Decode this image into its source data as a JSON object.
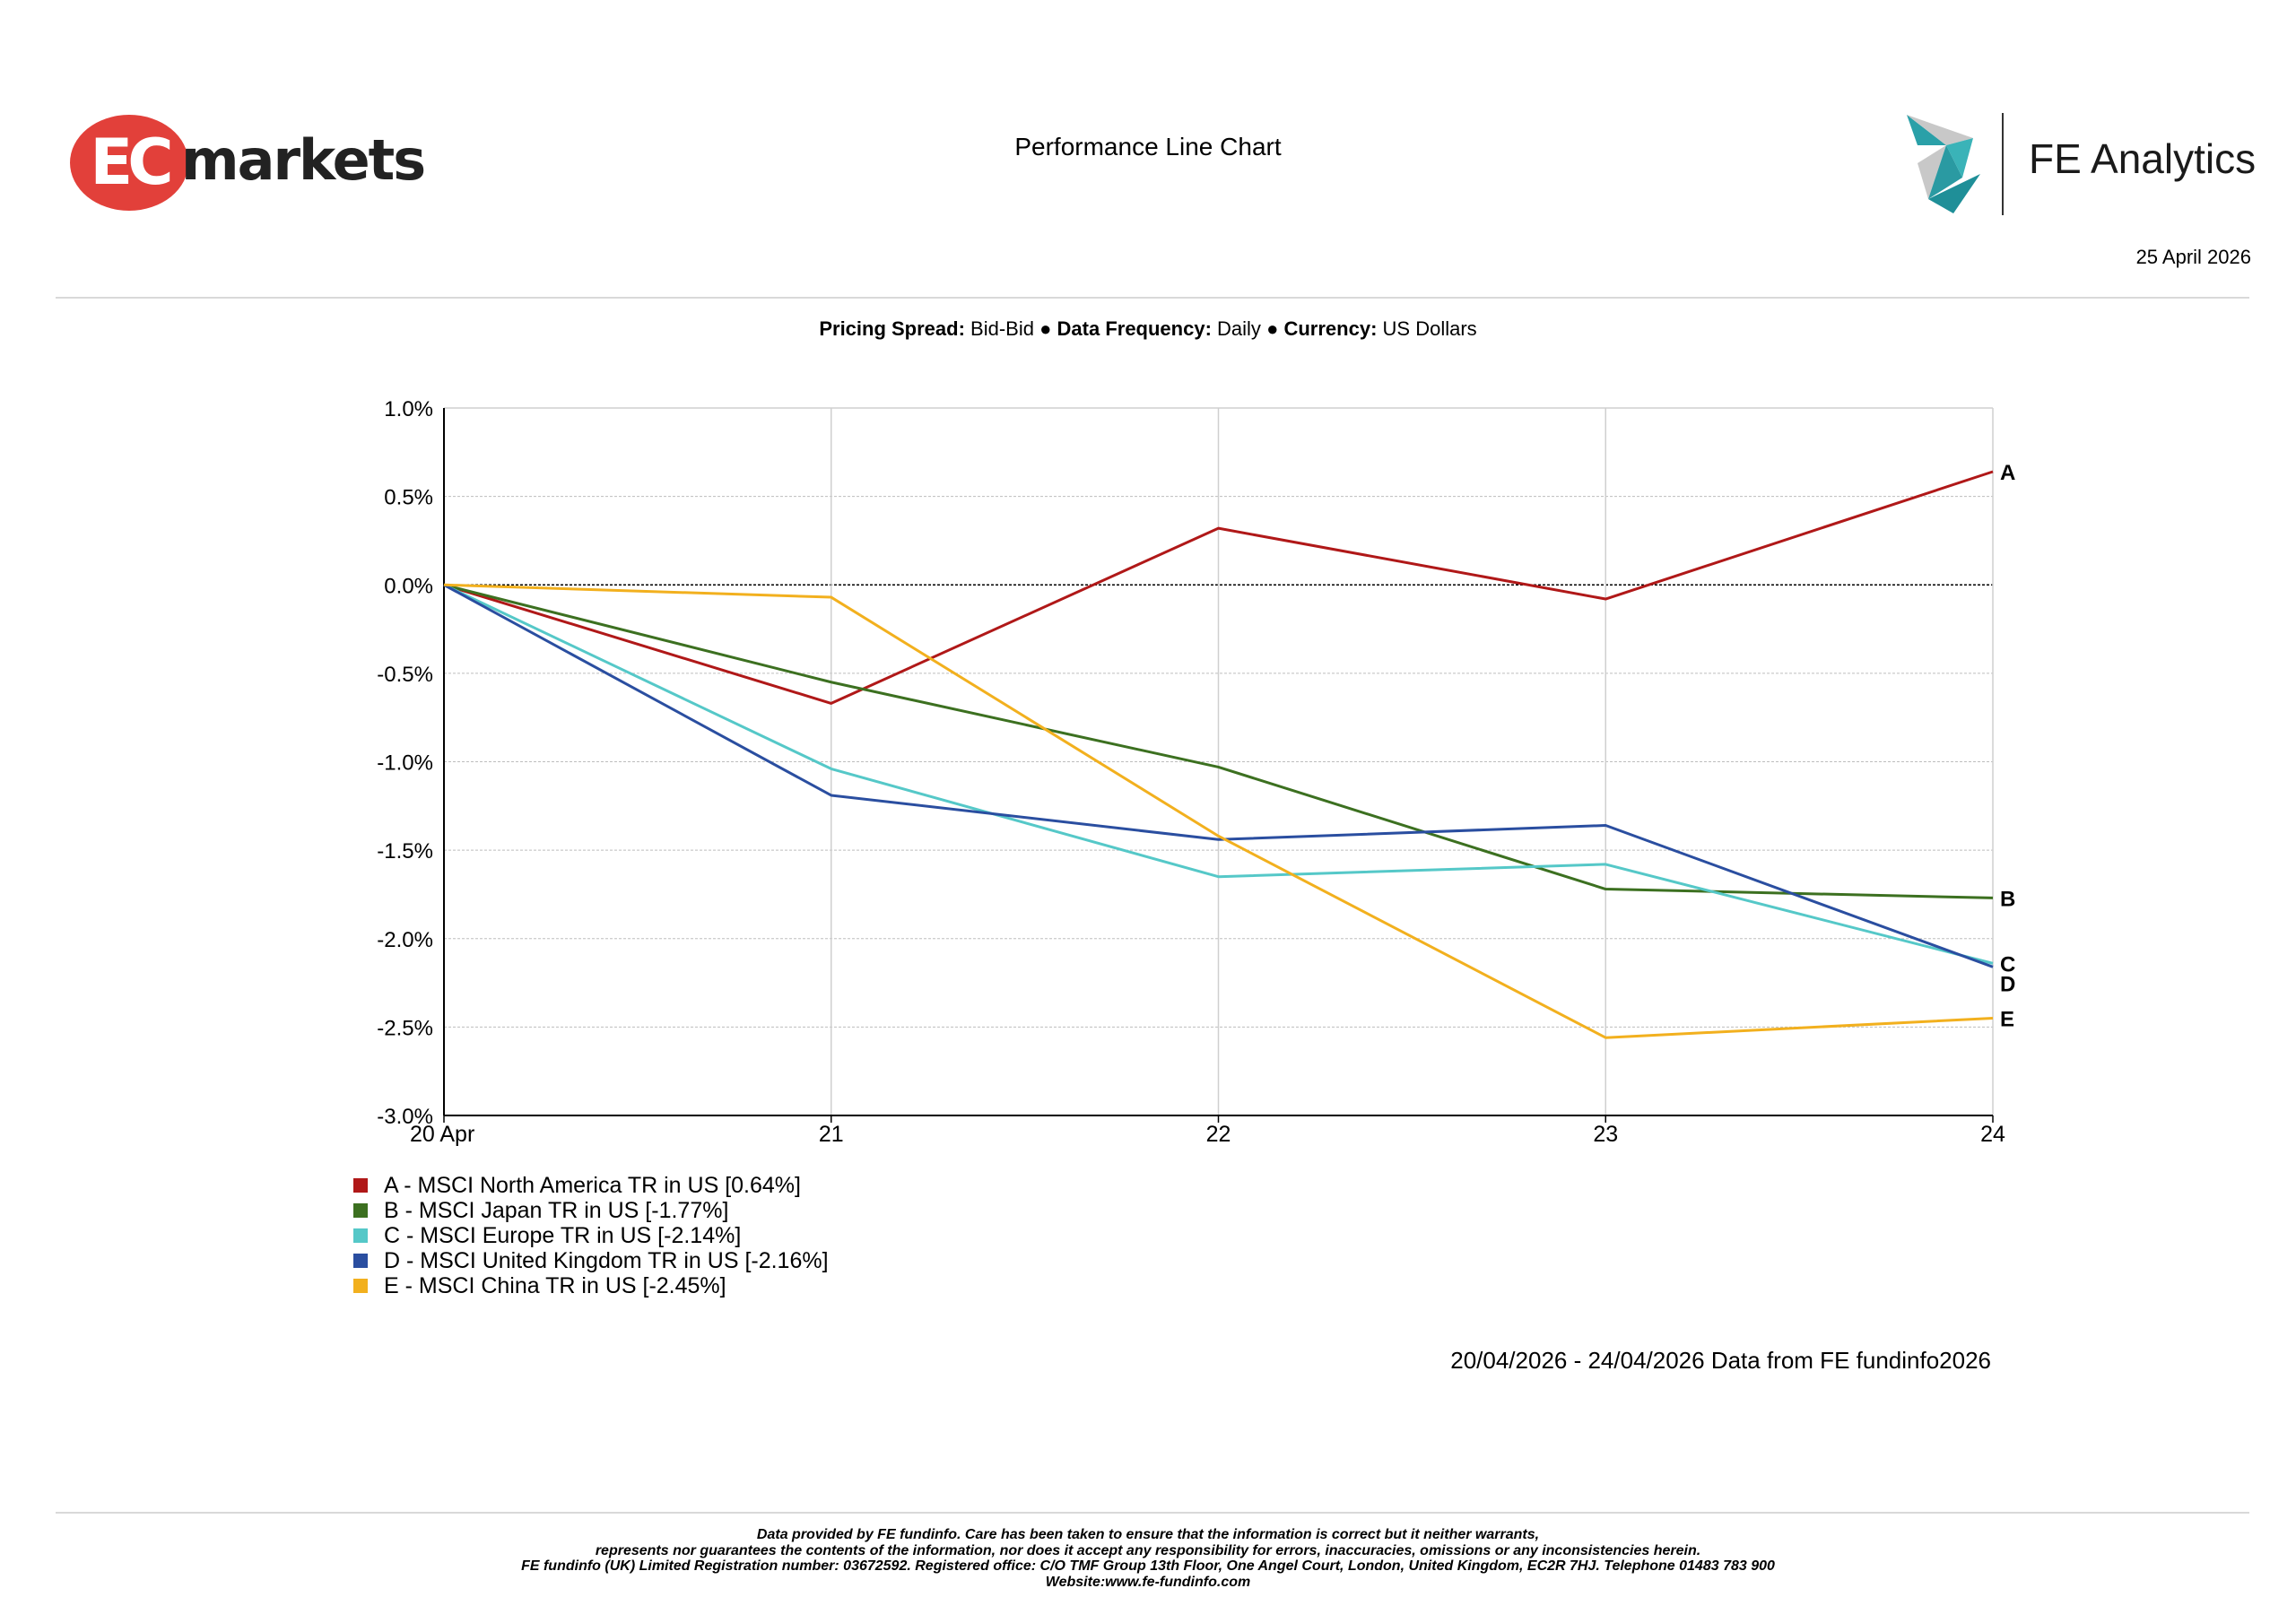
{
  "header": {
    "brand_logo": {
      "mark": "EC",
      "word": "markets"
    },
    "title": "Performance Line Chart",
    "fe_logo_text": "FE Analytics",
    "date": "25 April 2026"
  },
  "meta": {
    "pricing_spread_label": "Pricing Spread:",
    "pricing_spread_value": "Bid-Bid",
    "data_frequency_label": "Data Frequency:",
    "data_frequency_value": "Daily",
    "currency_label": "Currency:",
    "currency_value": "US Dollars",
    "separator": "●"
  },
  "chart_data": {
    "type": "line",
    "x": [
      "20 Apr",
      "21",
      "22",
      "23",
      "24"
    ],
    "ylim": [
      -3.0,
      1.0
    ],
    "yticks": [
      "1.0%",
      "0.5%",
      "0.0%",
      "-0.5%",
      "-1.0%",
      "-1.5%",
      "-2.0%",
      "-2.5%",
      "-3.0%"
    ],
    "grid": true,
    "legend_position": "bottom-left",
    "series": [
      {
        "name": "A - MSCI North America TR in US [0.64%]",
        "letter": "A",
        "color": "#b01818",
        "values": [
          0,
          -0.67,
          0.32,
          -0.08,
          0.64
        ]
      },
      {
        "name": "B - MSCI Japan TR in US [-1.77%]",
        "letter": "B",
        "color": "#3c7020",
        "values": [
          0,
          -0.55,
          -1.03,
          -1.72,
          -1.77
        ]
      },
      {
        "name": "C - MSCI Europe TR in US [-2.14%]",
        "letter": "C",
        "color": "#55c8c8",
        "values": [
          0,
          -1.04,
          -1.65,
          -1.58,
          -2.14
        ]
      },
      {
        "name": "D - MSCI United Kingdom TR in US [-2.16%]",
        "letter": "D",
        "color": "#2a4ea0",
        "values": [
          0,
          -1.19,
          -1.44,
          -1.36,
          -2.16
        ]
      },
      {
        "name": "E - MSCI China TR in US [-2.45%]",
        "letter": "E",
        "color": "#f2b01e",
        "values": [
          0,
          -0.07,
          -1.42,
          -2.56,
          -2.45
        ]
      }
    ]
  },
  "source": "20/04/2026 - 24/04/2026 Data from FE fundinfo2026",
  "footer": {
    "line1": "Data provided by FE fundinfo. Care has been taken to ensure that the information is correct but it neither warrants,",
    "line2": "represents nor guarantees the contents of the information, nor does it accept any responsibility for errors, inaccuracies, omissions or any inconsistencies herein.",
    "line3": "FE fundinfo (UK) Limited Registration number: 03672592. Registered office: C/O TMF Group 13th Floor, One Angel Court, London, United Kingdom, EC2R 7HJ. Telephone 01483 783 900",
    "line4": "Website:www.fe-fundinfo.com"
  }
}
